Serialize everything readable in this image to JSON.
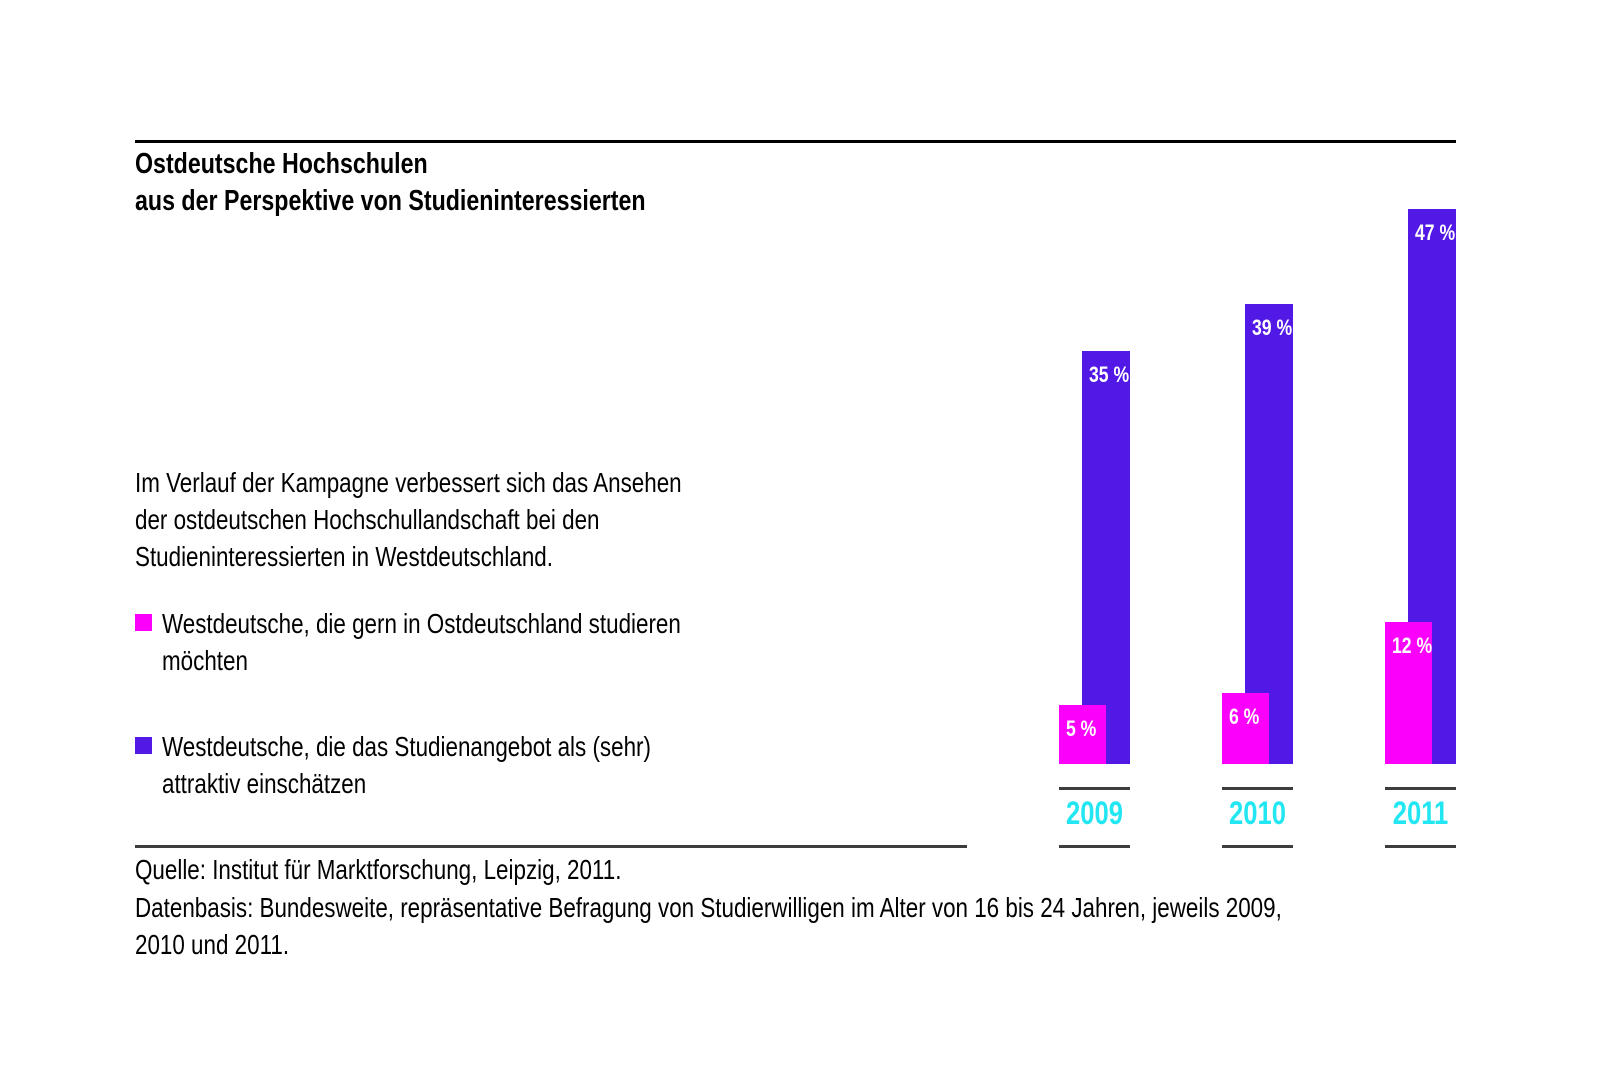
{
  "page": {
    "title": "Ostdeutsche Hochschulen\naus der Perspektive von Studieninteressierten",
    "intro": "Im Verlauf der Kampagne verbessert sich das Ansehen\nder ostdeutschen Hochschullandschaft bei den\nStudieninteressierten in Westdeutschland.",
    "source_line1": "Quelle: Institut für Marktforschung, Leipzig, 2011.",
    "source_line2": "Datenbasis: Bundesweite, repräsentative Befragung von Studierwilligen im Alter von 16 bis 24 Jahren, jeweils 2009, 2010 und 2011."
  },
  "legend": {
    "items": [
      {
        "label": "Westdeutsche, die gern in Ostdeutschland studieren\nmöchten",
        "color": "#fb00fb"
      },
      {
        "label": "Westdeutsche, die das Studienangebot als (sehr)\nattraktiv einschätzen",
        "color": "#5218e6"
      }
    ]
  },
  "chart_data": {
    "type": "bar",
    "title": "Ostdeutsche Hochschulen aus der Perspektive von Studieninteressierten",
    "categories": [
      "2009",
      "2010",
      "2011"
    ],
    "series": [
      {
        "name": "Westdeutsche, die gern in Ostdeutschland studieren möchten",
        "color": "#fb00fb",
        "values": [
          5,
          6,
          12
        ],
        "labels": [
          "5 %",
          "6 %",
          "12 %"
        ]
      },
      {
        "name": "Westdeutsche, die das Studienangebot als (sehr) attraktiv einschätzen",
        "color": "#5218e6",
        "values": [
          35,
          39,
          47
        ],
        "labels": [
          "35 %",
          "39 %",
          "47 %"
        ]
      }
    ],
    "unit": "%",
    "ylim": [
      0,
      50
    ],
    "grid": false,
    "legend_position": "left",
    "category_label_color": "#22e7f2"
  },
  "colors": {
    "magenta": "#fb00fb",
    "purple": "#5218e6",
    "cyan": "#22e7f2",
    "rule": "#000000"
  }
}
